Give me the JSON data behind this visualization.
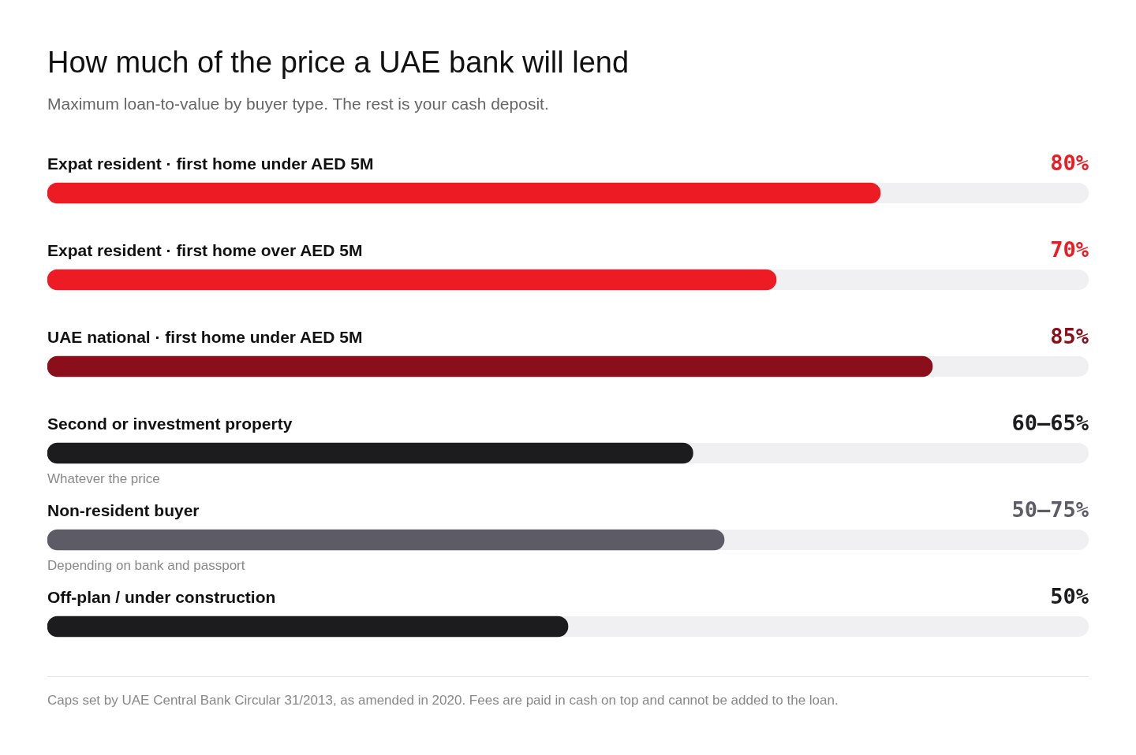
{
  "chart_data": {
    "type": "bar",
    "orientation": "horizontal",
    "title": "How much of the price a UAE bank will lend",
    "subtitle": "Maximum loan-to-value by buyer type. The rest is your cash deposit.",
    "categories": [
      "Expat resident · first home under AED 5M",
      "Expat resident · first home over AED 5M",
      "UAE national · first home under AED 5M",
      "Second or investment property",
      "Non-resident buyer",
      "Off-plan / under construction"
    ],
    "values": [
      80,
      70,
      85,
      62,
      65,
      50
    ],
    "colors": [
      "#ed1c24",
      "#ed1c24",
      "#8b0f1a",
      "#1c1c1e",
      "#5c5b66",
      "#1c1c1e"
    ],
    "value_labels": [
      "80%",
      "70%",
      "85%",
      null,
      null,
      "50%"
    ],
    "xlim": [
      0,
      100
    ],
    "tick_labels": false,
    "annotations": [
      "60–65%",
      "50–75%",
      {
        "text": "Whatever the price",
        "y": "Second or investment property"
      },
      {
        "text": "Depending on bank and passport",
        "y": "Non-resident buyer"
      },
      "Caps set by UAE Central Bank Circular 31/2013, as amended in 2020. Fees are paid in cash on top and cannot be added to the loan."
    ]
  }
}
